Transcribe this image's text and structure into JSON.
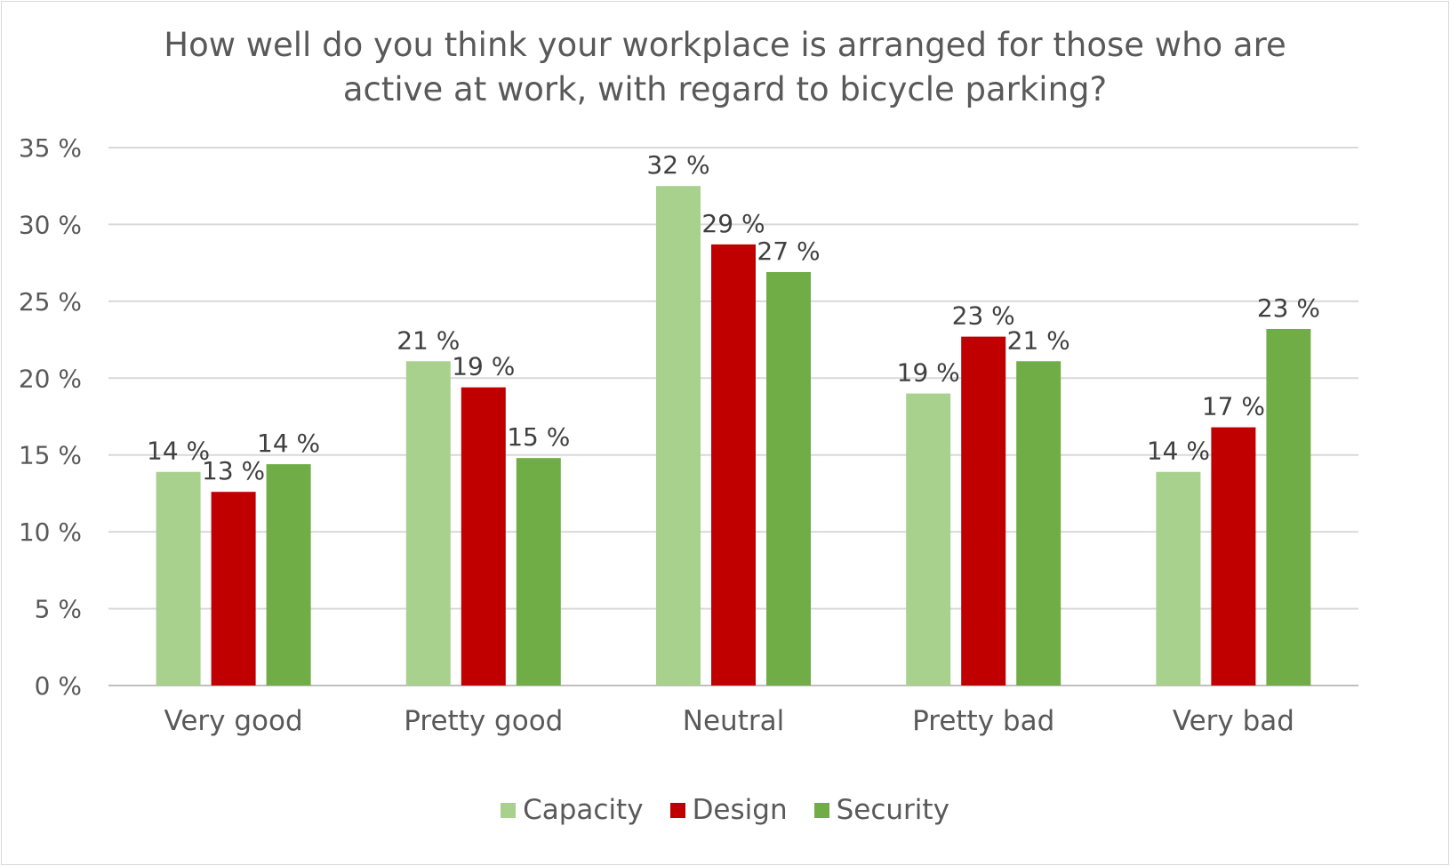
{
  "chart_data": {
    "type": "bar",
    "title_lines": [
      "How well do you think your workplace is arranged for those who are",
      "active at work, with regard to bicycle parking?"
    ],
    "categories": [
      "Very good",
      "Pretty good",
      "Neutral",
      "Pretty bad",
      "Very bad"
    ],
    "series": [
      {
        "name": "Capacity",
        "color": "#a9d18e",
        "values": [
          13.9,
          21.1,
          32.5,
          19.0,
          13.9
        ],
        "labels": [
          "14 %",
          "21 %",
          "32 %",
          "19 %",
          "14 %"
        ]
      },
      {
        "name": "Design",
        "color": "#c00000",
        "values": [
          12.6,
          19.4,
          28.7,
          22.7,
          16.8
        ],
        "labels": [
          "13 %",
          "19 %",
          "29 %",
          "23 %",
          "17 %"
        ]
      },
      {
        "name": "Security",
        "color": "#70ad47",
        "values": [
          14.4,
          14.8,
          26.9,
          21.1,
          23.2
        ],
        "labels": [
          "14 %",
          "15 %",
          "27 %",
          "21 %",
          "23 %"
        ]
      }
    ],
    "ylim": [
      0,
      35
    ],
    "yticks": [
      0,
      5,
      10,
      15,
      20,
      25,
      30,
      35
    ],
    "ytick_labels": [
      "0 %",
      "5 %",
      "10 %",
      "15 %",
      "20 %",
      "25 %",
      "30 %",
      "35 %"
    ],
    "xlabel": "",
    "ylabel": "",
    "grid": true,
    "legend_position": "bottom"
  }
}
